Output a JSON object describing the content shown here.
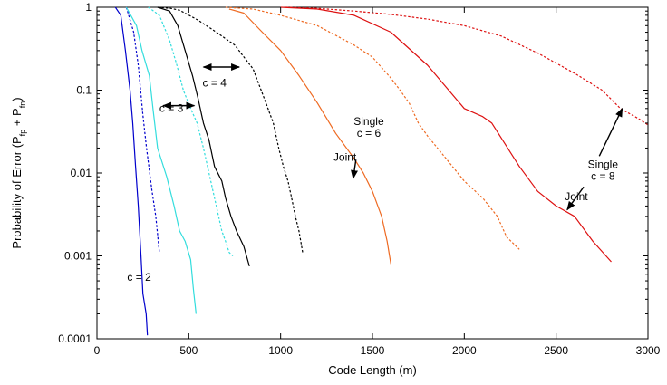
{
  "chart_data": {
    "type": "line",
    "title": "",
    "xlabel": "Code Length (m)",
    "ylabel_parts": [
      "Probability of Error (P",
      "fp",
      " + P",
      "fn",
      ")"
    ],
    "xlim": [
      0,
      3000
    ],
    "ylim": [
      0.0001,
      1
    ],
    "yscale": "log",
    "grid": false,
    "x_ticks": [
      0,
      500,
      1000,
      1500,
      2000,
      2500,
      3000
    ],
    "y_ticks": [
      0.0001,
      0.001,
      0.01,
      0.1,
      1
    ],
    "y_tick_labels": [
      "0.0001",
      "0.001",
      "0.01",
      "0.1",
      "1"
    ],
    "series": [
      {
        "color": "#0000cc",
        "dash": false,
        "points": [
          [
            100,
            1
          ],
          [
            130,
            0.8
          ],
          [
            155,
            0.3
          ],
          [
            180,
            0.1
          ],
          [
            195,
            0.04
          ],
          [
            210,
            0.012
          ],
          [
            225,
            0.004
          ],
          [
            240,
            0.001
          ],
          [
            250,
            0.00035
          ],
          [
            268,
            0.0002
          ],
          [
            275,
            0.00011
          ]
        ]
      },
      {
        "color": "#0000cc",
        "dash": true,
        "points": [
          [
            160,
            1
          ],
          [
            200,
            0.5
          ],
          [
            225,
            0.2
          ],
          [
            250,
            0.05
          ],
          [
            270,
            0.02
          ],
          [
            300,
            0.006
          ],
          [
            320,
            0.003
          ],
          [
            340,
            0.0011
          ]
        ]
      },
      {
        "color": "#33dddd",
        "dash": false,
        "points": [
          [
            160,
            1
          ],
          [
            215,
            0.6
          ],
          [
            245,
            0.3
          ],
          [
            285,
            0.15
          ],
          [
            305,
            0.06
          ],
          [
            330,
            0.02
          ],
          [
            380,
            0.009
          ],
          [
            420,
            0.004
          ],
          [
            450,
            0.002
          ],
          [
            480,
            0.0015
          ],
          [
            510,
            0.0009
          ],
          [
            525,
            0.0004
          ],
          [
            540,
            0.0002
          ]
        ]
      },
      {
        "color": "#33dddd",
        "dash": true,
        "points": [
          [
            280,
            1
          ],
          [
            340,
            0.8
          ],
          [
            395,
            0.4
          ],
          [
            435,
            0.2
          ],
          [
            470,
            0.1
          ],
          [
            510,
            0.06
          ],
          [
            545,
            0.04
          ],
          [
            580,
            0.02
          ],
          [
            610,
            0.01
          ],
          [
            650,
            0.004
          ],
          [
            680,
            0.002
          ],
          [
            700,
            0.0015
          ],
          [
            720,
            0.0011
          ],
          [
            740,
            0.001
          ]
        ]
      },
      {
        "color": "#000000",
        "dash": false,
        "points": [
          [
            330,
            1
          ],
          [
            395,
            0.9
          ],
          [
            440,
            0.6
          ],
          [
            480,
            0.3
          ],
          [
            520,
            0.15
          ],
          [
            550,
            0.08
          ],
          [
            580,
            0.04
          ],
          [
            610,
            0.025
          ],
          [
            640,
            0.012
          ],
          [
            680,
            0.008
          ],
          [
            700,
            0.005
          ],
          [
            730,
            0.003
          ],
          [
            760,
            0.002
          ],
          [
            800,
            0.0013
          ],
          [
            830,
            0.00075
          ]
        ]
      },
      {
        "color": "#000000",
        "dash": true,
        "points": [
          [
            330,
            1
          ],
          [
            400,
            0.97
          ],
          [
            450,
            0.92
          ],
          [
            550,
            0.7
          ],
          [
            650,
            0.5
          ],
          [
            750,
            0.35
          ],
          [
            850,
            0.18
          ],
          [
            920,
            0.07
          ],
          [
            960,
            0.04
          ],
          [
            990,
            0.02
          ],
          [
            1015,
            0.012
          ],
          [
            1040,
            0.008
          ],
          [
            1060,
            0.005
          ],
          [
            1080,
            0.003
          ],
          [
            1100,
            0.002
          ],
          [
            1120,
            0.0011
          ]
        ]
      },
      {
        "color": "#ee6a22",
        "dash": false,
        "points": [
          [
            720,
            0.95
          ],
          [
            800,
            0.85
          ],
          [
            900,
            0.5
          ],
          [
            1000,
            0.3
          ],
          [
            1100,
            0.15
          ],
          [
            1200,
            0.07
          ],
          [
            1300,
            0.03
          ],
          [
            1400,
            0.015
          ],
          [
            1450,
            0.01
          ],
          [
            1500,
            0.006
          ],
          [
            1550,
            0.003
          ],
          [
            1580,
            0.0015
          ],
          [
            1600,
            0.0008
          ]
        ]
      },
      {
        "color": "#ee6a22",
        "dash": true,
        "points": [
          [
            700,
            1
          ],
          [
            850,
            0.95
          ],
          [
            1000,
            0.8
          ],
          [
            1200,
            0.6
          ],
          [
            1400,
            0.35
          ],
          [
            1500,
            0.25
          ],
          [
            1600,
            0.14
          ],
          [
            1650,
            0.1
          ],
          [
            1700,
            0.07
          ],
          [
            1750,
            0.04
          ],
          [
            1800,
            0.028
          ],
          [
            1900,
            0.015
          ],
          [
            2000,
            0.008
          ],
          [
            2100,
            0.005
          ],
          [
            2180,
            0.003
          ],
          [
            2230,
            0.0017
          ],
          [
            2300,
            0.0012
          ]
        ]
      },
      {
        "color": "#dd1111",
        "dash": false,
        "points": [
          [
            1000,
            1
          ],
          [
            1200,
            0.95
          ],
          [
            1400,
            0.8
          ],
          [
            1600,
            0.5
          ],
          [
            1800,
            0.2
          ],
          [
            2000,
            0.06
          ],
          [
            2100,
            0.048
          ],
          [
            2150,
            0.04
          ],
          [
            2300,
            0.012
          ],
          [
            2400,
            0.006
          ],
          [
            2500,
            0.004
          ],
          [
            2600,
            0.003
          ],
          [
            2700,
            0.0015
          ],
          [
            2800,
            0.00085
          ]
        ]
      },
      {
        "color": "#dd1111",
        "dash": true,
        "points": [
          [
            1030,
            1
          ],
          [
            1200,
            0.97
          ],
          [
            1400,
            0.9
          ],
          [
            1600,
            0.82
          ],
          [
            1800,
            0.72
          ],
          [
            2000,
            0.6
          ],
          [
            2200,
            0.45
          ],
          [
            2400,
            0.28
          ],
          [
            2600,
            0.16
          ],
          [
            2750,
            0.1
          ],
          [
            2850,
            0.06
          ],
          [
            2950,
            0.045
          ],
          [
            3000,
            0.038
          ]
        ]
      }
    ],
    "annotations": [
      {
        "lines": [
          "c = 2"
        ],
        "x": 230,
        "y": 0.0005
      },
      {
        "lines": [
          "c = 3"
        ],
        "x": 405,
        "y": 0.055
      },
      {
        "lines": [
          "c = 4"
        ],
        "x": 640,
        "y": 0.11
      },
      {
        "lines": [
          "Single",
          "c = 6"
        ],
        "x": 1480,
        "y": 0.038
      },
      {
        "lines": [
          "Joint"
        ],
        "x": 1350,
        "y": 0.014
      },
      {
        "lines": [
          "Single",
          "c = 8"
        ],
        "x": 2755,
        "y": 0.0115
      },
      {
        "lines": [
          "Joint"
        ],
        "x": 2610,
        "y": 0.0047
      }
    ],
    "arrows": [
      {
        "kind": "double",
        "from": [
          360,
          0.065
        ],
        "to": [
          530,
          0.065
        ]
      },
      {
        "kind": "double",
        "from": [
          580,
          0.19
        ],
        "to": [
          775,
          0.19
        ]
      },
      {
        "kind": "single",
        "from": [
          1410,
          0.0145
        ],
        "to": [
          1395,
          0.0086
        ]
      },
      {
        "kind": "single",
        "from": [
          2650,
          0.0068
        ],
        "to": [
          2560,
          0.0036
        ]
      },
      {
        "kind": "single",
        "from": [
          2735,
          0.016
        ],
        "to": [
          2860,
          0.06
        ]
      }
    ]
  }
}
